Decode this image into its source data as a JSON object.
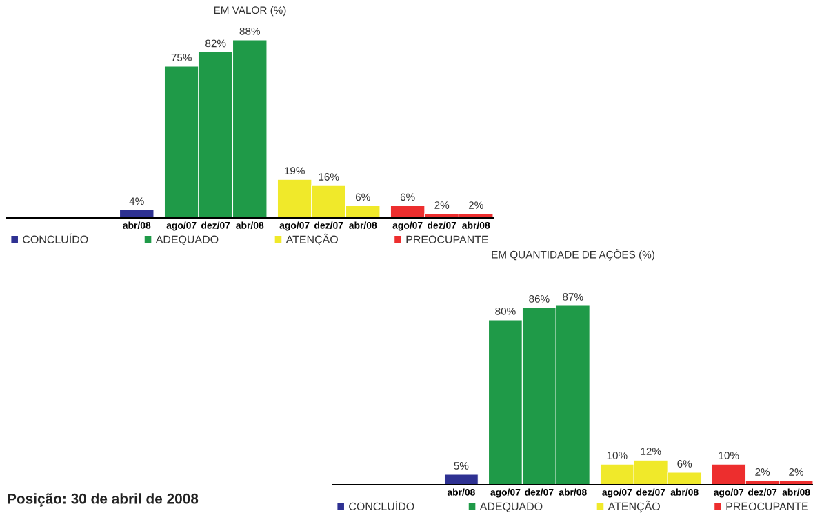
{
  "chart_data": [
    {
      "type": "bar",
      "title": "EM VALOR (%)",
      "categories": [
        null,
        null,
        "abr/08",
        "ago/07",
        "dez/07",
        "abr/08",
        "ago/07",
        "dez/07",
        "abr/08",
        "ago/07",
        "dez/07",
        "abr/08"
      ],
      "legend": "bottom",
      "grid": false,
      "series": [
        {
          "name": "CONCLUÍDO",
          "color": "#2e3192",
          "values": [
            null,
            null,
            4,
            null,
            null,
            null,
            null,
            null,
            null,
            null,
            null,
            null
          ],
          "value_labels": [
            null,
            null,
            "4%",
            null,
            null,
            null,
            null,
            null,
            null,
            null,
            null,
            null
          ]
        },
        {
          "name": "ADEQUADO",
          "color": "#1f9a48",
          "values": [
            null,
            null,
            null,
            75,
            82,
            88,
            null,
            null,
            null,
            null,
            null,
            null
          ],
          "value_labels": [
            null,
            null,
            null,
            "75%",
            "82%",
            "88%",
            null,
            null,
            null,
            null,
            null,
            null
          ]
        },
        {
          "name": "ATENÇÃO",
          "color": "#f0e92a",
          "values": [
            null,
            null,
            null,
            null,
            null,
            null,
            19,
            16,
            6,
            null,
            null,
            null
          ],
          "value_labels": [
            null,
            null,
            null,
            null,
            null,
            null,
            "19%",
            "16%",
            "6%",
            null,
            null,
            null
          ]
        },
        {
          "name": "PREOCUPANTE",
          "color": "#ed2e2e",
          "values": [
            null,
            null,
            null,
            null,
            null,
            null,
            null,
            null,
            null,
            6,
            2,
            2
          ],
          "value_labels": [
            null,
            null,
            null,
            null,
            null,
            null,
            null,
            null,
            null,
            "6%",
            "2%",
            "2%"
          ]
        }
      ]
    },
    {
      "type": "bar",
      "title": "EM QUANTIDADE DE AÇÕES (%)",
      "categories": [
        null,
        null,
        "abr/08",
        "ago/07",
        "dez/07",
        "abr/08",
        "ago/07",
        "dez/07",
        "abr/08",
        "ago/07",
        "dez/07",
        "abr/08"
      ],
      "legend": "bottom",
      "grid": false,
      "annotations": [
        "Posição: 30 de abril de 2008"
      ],
      "series": [
        {
          "name": "CONCLUÍDO",
          "color": "#2e3192",
          "values": [
            null,
            null,
            5,
            null,
            null,
            null,
            null,
            null,
            null,
            null,
            null,
            null
          ],
          "value_labels": [
            null,
            null,
            "5%",
            null,
            null,
            null,
            null,
            null,
            null,
            null,
            null,
            null
          ]
        },
        {
          "name": "ADEQUADO",
          "color": "#1f9a48",
          "values": [
            null,
            null,
            null,
            80,
            86,
            87,
            null,
            null,
            null,
            null,
            null,
            null
          ],
          "value_labels": [
            null,
            null,
            null,
            "80%",
            "86%",
            "87%",
            null,
            null,
            null,
            null,
            null,
            null
          ]
        },
        {
          "name": "ATENÇÃO",
          "color": "#f0e92a",
          "values": [
            null,
            null,
            null,
            null,
            null,
            null,
            10,
            12,
            6,
            null,
            null,
            null
          ],
          "value_labels": [
            null,
            null,
            null,
            null,
            null,
            null,
            "10%",
            "12%",
            "6%",
            null,
            null,
            null
          ]
        },
        {
          "name": "PREOCUPANTE",
          "color": "#ed2e2e",
          "values": [
            null,
            null,
            null,
            null,
            null,
            null,
            null,
            null,
            null,
            10,
            2,
            2
          ],
          "value_labels": [
            null,
            null,
            null,
            null,
            null,
            null,
            null,
            null,
            null,
            "10%",
            "2%",
            "2%"
          ]
        }
      ]
    }
  ]
}
